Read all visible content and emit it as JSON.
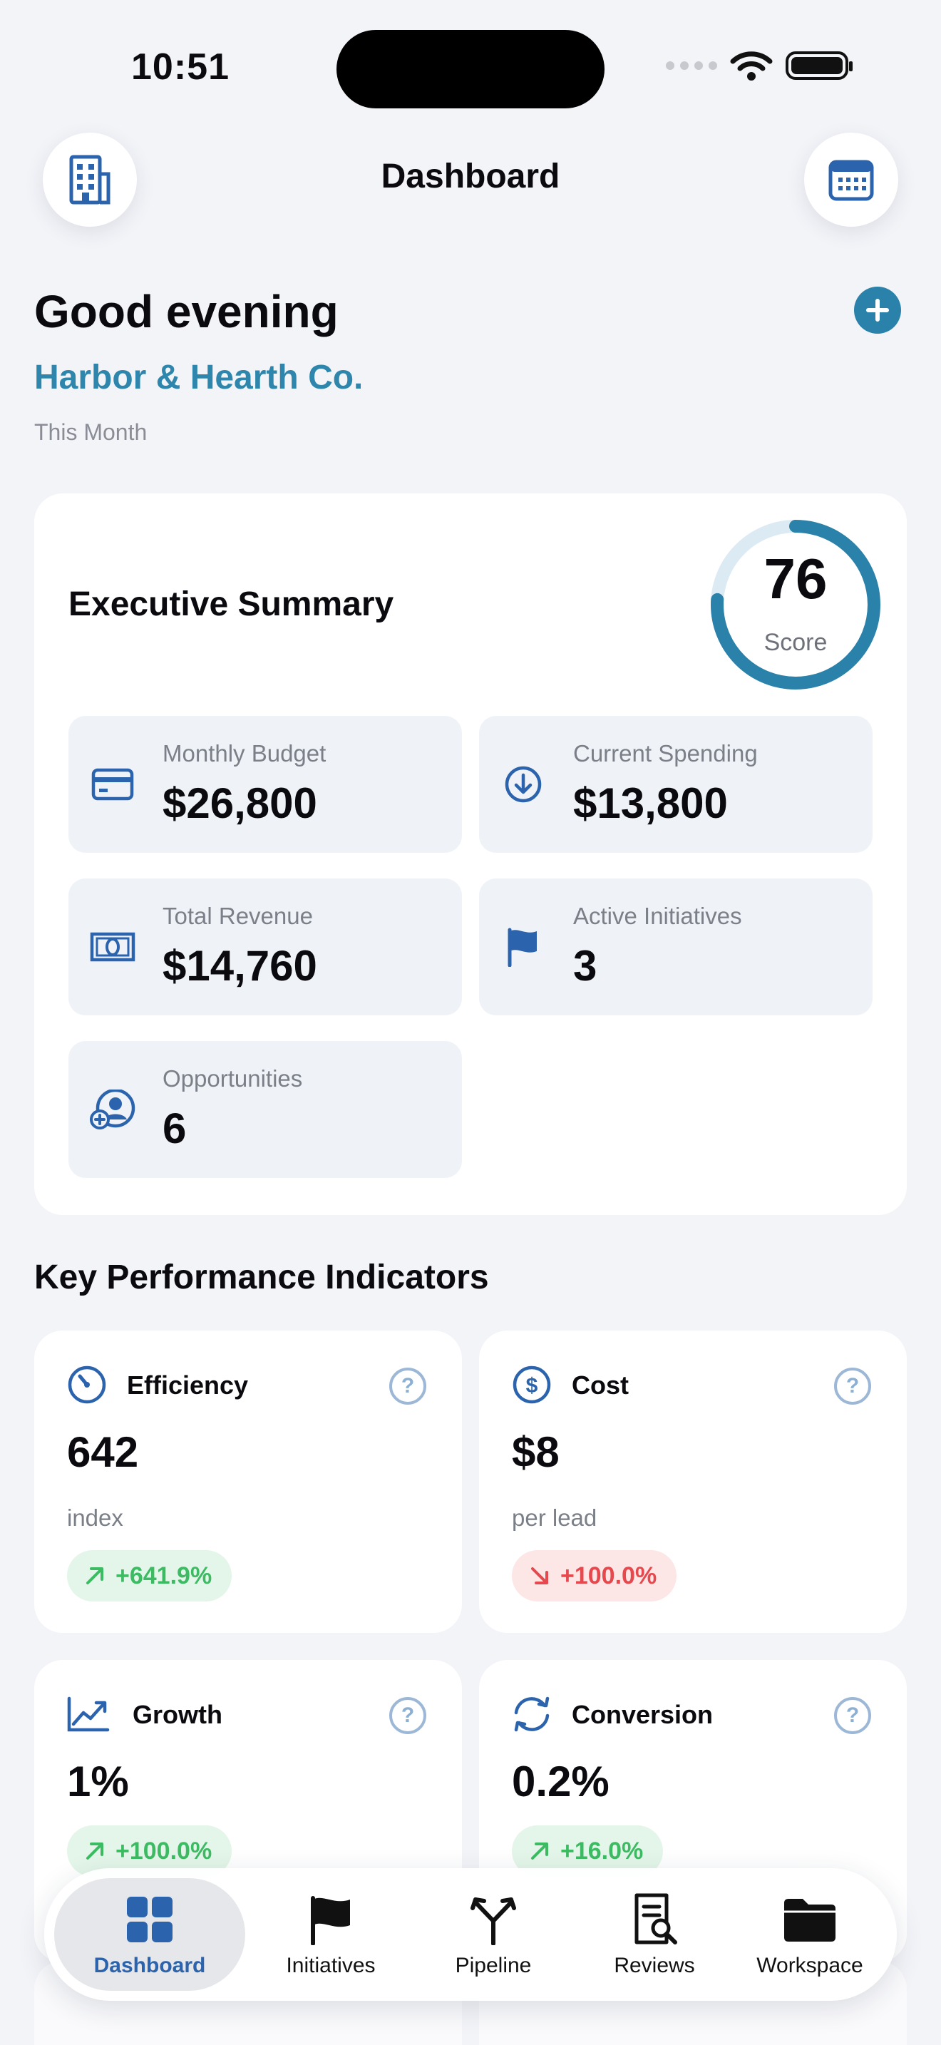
{
  "status_bar": {
    "time": "10:51"
  },
  "header": {
    "title": "Dashboard",
    "left_icon": "building-icon",
    "right_icon": "calendar-icon"
  },
  "greeting": {
    "text": "Good evening",
    "company": "Harbor & Hearth Co.",
    "period": "This Month",
    "add_icon": "plus-circle-icon"
  },
  "summary": {
    "title": "Executive Summary",
    "score": {
      "value": "76",
      "label": "Score",
      "progress": 0.76
    },
    "tiles": [
      {
        "label": "Monthly Budget",
        "value": "$26,800",
        "icon": "credit-card-icon"
      },
      {
        "label": "Current Spending",
        "value": "$13,800",
        "icon": "arrow-down-circle-icon"
      },
      {
        "label": "Total Revenue",
        "value": "$14,760",
        "icon": "banknote-icon"
      },
      {
        "label": "Active Initiatives",
        "value": "3",
        "icon": "flag-icon"
      },
      {
        "label": "Opportunities",
        "value": "6",
        "icon": "person-add-icon"
      }
    ]
  },
  "kpis": {
    "heading": "Key Performance Indicators",
    "items": [
      {
        "name": "Efficiency",
        "value": "642",
        "unit": "index",
        "change": "+641.9%",
        "trend": "up",
        "icon": "gauge-icon"
      },
      {
        "name": "Cost",
        "value": "$8",
        "unit": "per lead",
        "change": "+100.0%",
        "trend": "down",
        "icon": "dollar-circle-icon"
      },
      {
        "name": "Growth",
        "value": "1%",
        "unit": "",
        "change": "+100.0%",
        "trend": "up",
        "icon": "chart-line-icon"
      },
      {
        "name": "Conversion",
        "value": "0.2%",
        "unit": "",
        "change": "+16.0%",
        "trend": "up",
        "icon": "refresh-icon"
      }
    ],
    "help_glyph": "?"
  },
  "tabbar": {
    "tabs": [
      {
        "label": "Dashboard",
        "icon": "grid-icon",
        "active": true
      },
      {
        "label": "Initiatives",
        "icon": "flag-icon",
        "active": false
      },
      {
        "label": "Pipeline",
        "icon": "fork-icon",
        "active": false
      },
      {
        "label": "Reviews",
        "icon": "doc-search-icon",
        "active": false
      },
      {
        "label": "Workspace",
        "icon": "folder-icon",
        "active": false
      }
    ]
  },
  "colors": {
    "accent": "#2a81a9",
    "brand_blue": "#2b63ad",
    "positive": "#3dbb63",
    "negative": "#e5484d",
    "background": "#f3f4f8"
  }
}
